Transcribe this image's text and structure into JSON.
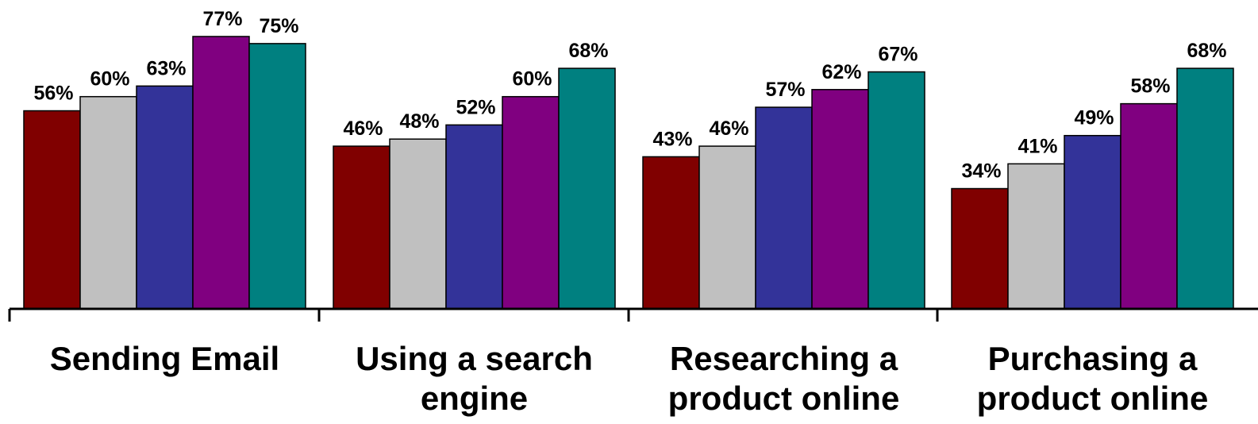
{
  "chart_data": {
    "type": "bar",
    "categories": [
      [
        "Sending Email"
      ],
      [
        "Using a search",
        "engine"
      ],
      [
        "Researching a",
        "product online"
      ],
      [
        "Purchasing a",
        "product online"
      ]
    ],
    "series": [
      {
        "color": "#800000",
        "values": [
          56,
          46,
          43,
          34
        ]
      },
      {
        "color": "#C0C0C0",
        "values": [
          60,
          48,
          46,
          41
        ]
      },
      {
        "color": "#333399",
        "values": [
          63,
          52,
          57,
          49
        ]
      },
      {
        "color": "#800080",
        "values": [
          77,
          60,
          62,
          58
        ]
      },
      {
        "color": "#008080",
        "values": [
          75,
          68,
          67,
          68
        ]
      }
    ],
    "value_suffix": "%",
    "ylim": [
      0,
      100
    ],
    "grid": false,
    "legend": "none"
  }
}
